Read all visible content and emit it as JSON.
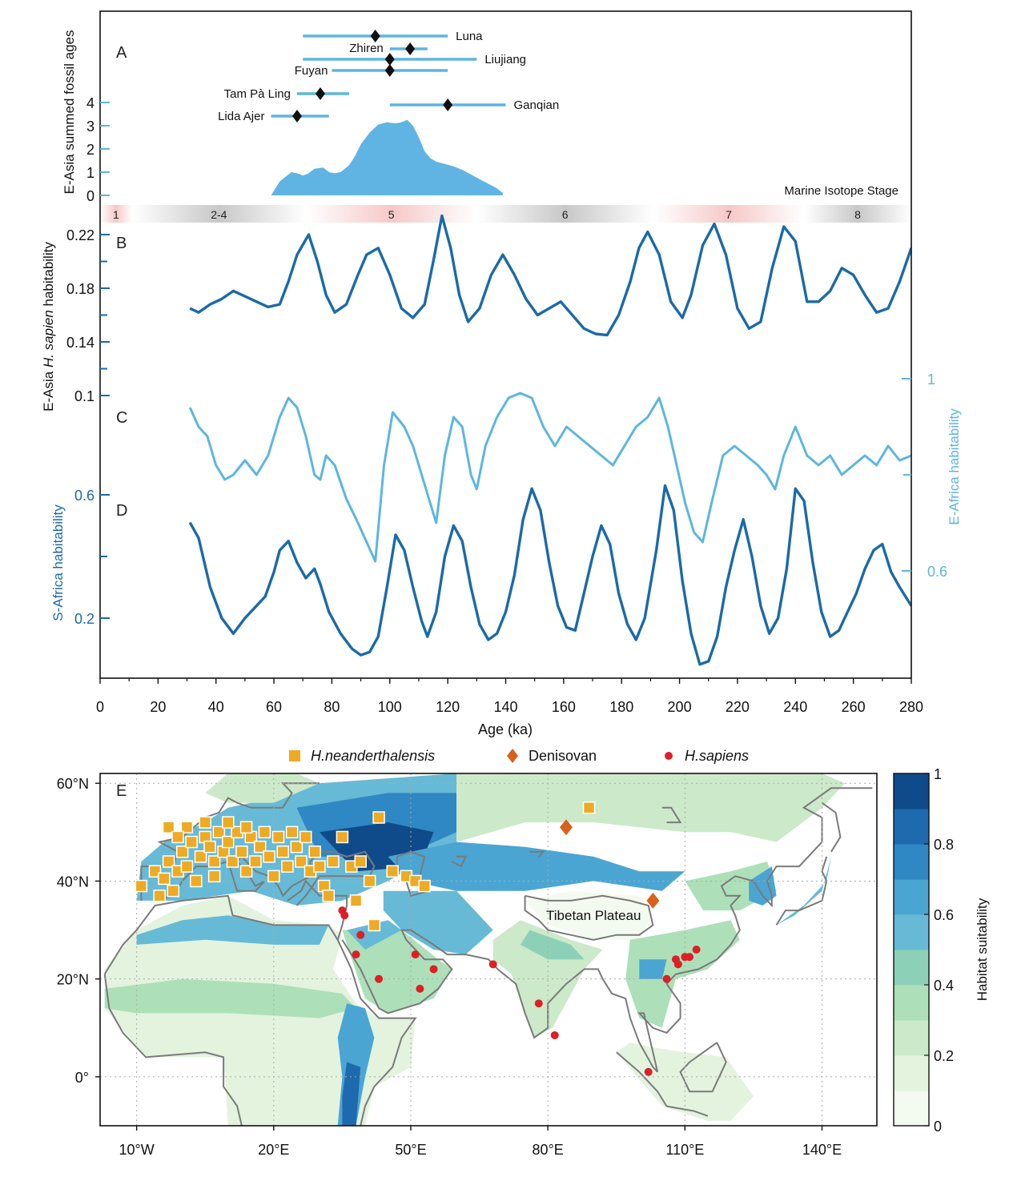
{
  "colors": {
    "dark_blue": "#1a6aa8",
    "light_blue": "#5cb6e0",
    "fill_blue": "#5fb4e4",
    "neanderthal": "#eeaa22",
    "denisovan": "#d9601a",
    "sapiens": "#dd1f26",
    "coast": "#7a7a7a",
    "mis_warm": "#f6c8c8",
    "mis_cold": "#c8c8c8"
  },
  "chart_data": [
    {
      "panel": "A",
      "type": "area",
      "ylabel": "E-Asia summed fossil ages",
      "yticks": [
        0,
        1,
        2,
        3,
        4
      ],
      "summed_curve": {
        "x": [
          59,
          62,
          66,
          68,
          70,
          72,
          74,
          77,
          79,
          81,
          83,
          86,
          88,
          90,
          93,
          96,
          99,
          102,
          104,
          106,
          108,
          110,
          112,
          114,
          116,
          119,
          122,
          125,
          128,
          131,
          134,
          137,
          139
        ],
        "y": [
          0,
          0.6,
          1.0,
          0.95,
          0.85,
          0.95,
          1.15,
          1.2,
          1.0,
          0.95,
          1.0,
          1.3,
          1.7,
          2.2,
          2.7,
          3.05,
          3.15,
          3.1,
          3.15,
          3.25,
          3.0,
          2.5,
          1.9,
          1.6,
          1.45,
          1.35,
          1.25,
          1.1,
          0.9,
          0.7,
          0.5,
          0.3,
          0.1
        ]
      },
      "fossil_sites": [
        {
          "name": "Luna",
          "age": 95,
          "min": 70,
          "max": 120
        },
        {
          "name": "Zhiren",
          "age": 107,
          "min": 100,
          "max": 113
        },
        {
          "name": "Liujiang",
          "age": 100,
          "min": 70,
          "max": 130
        },
        {
          "name": "Fuyan",
          "age": 100,
          "min": 80,
          "max": 120
        },
        {
          "name": "Tam Pà Ling",
          "age": 76,
          "min": 68,
          "max": 86
        },
        {
          "name": "Ganqian",
          "age": 120,
          "min": 100,
          "max": 140
        },
        {
          "name": "Lida Ajer",
          "age": 68,
          "min": 59,
          "max": 79
        }
      ]
    },
    {
      "panel": "MIS",
      "type": "band",
      "title": "Marine Isotope Stage",
      "stages": [
        {
          "label": "1",
          "from": 0,
          "to": 11,
          "kind": "warm"
        },
        {
          "label": "2-4",
          "from": 11,
          "to": 71,
          "kind": "cold"
        },
        {
          "label": "5",
          "from": 71,
          "to": 130,
          "kind": "warm"
        },
        {
          "label": "6",
          "from": 130,
          "to": 191,
          "kind": "cold"
        },
        {
          "label": "7",
          "from": 191,
          "to": 243,
          "kind": "warm"
        },
        {
          "label": "8",
          "from": 243,
          "to": 280,
          "kind": "cold"
        }
      ]
    },
    {
      "panel": "B",
      "type": "line",
      "ylabel": "E-Asia H. sapien habitability",
      "yticks": [
        0.1,
        0.14,
        0.18,
        0.22
      ],
      "series": [
        {
          "name": "E-Asia",
          "x": [
            31,
            34,
            38,
            42,
            46,
            50,
            54,
            58,
            62,
            65,
            68,
            72,
            75,
            78,
            81,
            85,
            89,
            92,
            96,
            100,
            104,
            108,
            112,
            115,
            118,
            121,
            124,
            127,
            131,
            135,
            139,
            143,
            147,
            151,
            155,
            159,
            163,
            167,
            171,
            175,
            179,
            183,
            186,
            189,
            193,
            197,
            201,
            204,
            208,
            212,
            216,
            220,
            224,
            228,
            232,
            236,
            240,
            244,
            248,
            252,
            256,
            260,
            264,
            268,
            272,
            276,
            280
          ],
          "y": [
            0.165,
            0.162,
            0.168,
            0.172,
            0.178,
            0.174,
            0.17,
            0.166,
            0.168,
            0.185,
            0.205,
            0.22,
            0.2,
            0.175,
            0.162,
            0.168,
            0.19,
            0.205,
            0.21,
            0.19,
            0.165,
            0.158,
            0.168,
            0.2,
            0.234,
            0.21,
            0.175,
            0.155,
            0.165,
            0.19,
            0.205,
            0.19,
            0.172,
            0.16,
            0.165,
            0.17,
            0.16,
            0.15,
            0.146,
            0.145,
            0.16,
            0.185,
            0.21,
            0.222,
            0.205,
            0.17,
            0.158,
            0.175,
            0.212,
            0.228,
            0.205,
            0.165,
            0.15,
            0.155,
            0.195,
            0.226,
            0.215,
            0.17,
            0.17,
            0.178,
            0.195,
            0.19,
            0.175,
            0.162,
            0.165,
            0.185,
            0.21
          ]
        }
      ]
    },
    {
      "panel": "C",
      "type": "line",
      "ylabel": "E-Africa habitability",
      "yticks": [
        0.6,
        1
      ],
      "series": [
        {
          "name": "E-Africa",
          "x": [
            31,
            34,
            37,
            40,
            43,
            46,
            50,
            54,
            58,
            62,
            65,
            68,
            71,
            74,
            76,
            78,
            81,
            85,
            89,
            92,
            95,
            98,
            101,
            105,
            108,
            111,
            114,
            116,
            119,
            122,
            125,
            128,
            130,
            133,
            137,
            141,
            145,
            149,
            153,
            157,
            161,
            165,
            169,
            173,
            177,
            181,
            185,
            189,
            193,
            196,
            199,
            202,
            205,
            208,
            211,
            215,
            219,
            223,
            227,
            230,
            233,
            236,
            240,
            244,
            248,
            252,
            256,
            260,
            264,
            268,
            272,
            276,
            280
          ],
          "y": [
            0.94,
            0.9,
            0.88,
            0.82,
            0.79,
            0.8,
            0.83,
            0.8,
            0.84,
            0.92,
            0.96,
            0.94,
            0.88,
            0.8,
            0.79,
            0.84,
            0.82,
            0.75,
            0.7,
            0.66,
            0.62,
            0.82,
            0.93,
            0.9,
            0.86,
            0.8,
            0.74,
            0.7,
            0.84,
            0.92,
            0.9,
            0.8,
            0.77,
            0.86,
            0.92,
            0.96,
            0.97,
            0.96,
            0.9,
            0.86,
            0.9,
            0.88,
            0.86,
            0.84,
            0.82,
            0.86,
            0.9,
            0.92,
            0.96,
            0.9,
            0.82,
            0.74,
            0.68,
            0.66,
            0.74,
            0.84,
            0.86,
            0.84,
            0.82,
            0.8,
            0.77,
            0.84,
            0.9,
            0.84,
            0.82,
            0.84,
            0.8,
            0.82,
            0.84,
            0.82,
            0.86,
            0.83,
            0.84
          ]
        }
      ]
    },
    {
      "panel": "D",
      "type": "line",
      "ylabel": "S-Africa habitability",
      "yticks": [
        0.2,
        0.6
      ],
      "series": [
        {
          "name": "S-Africa",
          "x": [
            31,
            34,
            38,
            42,
            46,
            50,
            54,
            57,
            60,
            62,
            65,
            68,
            71,
            74,
            76,
            79,
            83,
            87,
            90,
            93,
            96,
            99,
            102,
            105,
            108,
            111,
            113,
            116,
            119,
            122,
            125,
            128,
            131,
            134,
            137,
            140,
            143,
            146,
            149,
            152,
            155,
            158,
            161,
            164,
            167,
            170,
            173,
            176,
            179,
            182,
            185,
            188,
            192,
            195,
            198,
            201,
            204,
            207,
            210,
            213,
            216,
            219,
            222,
            225,
            228,
            231,
            234,
            237,
            240,
            243,
            246,
            249,
            252,
            255,
            258,
            261,
            264,
            267,
            270,
            273,
            276,
            280
          ],
          "y": [
            0.51,
            0.46,
            0.3,
            0.2,
            0.15,
            0.2,
            0.24,
            0.27,
            0.35,
            0.42,
            0.45,
            0.38,
            0.33,
            0.36,
            0.31,
            0.22,
            0.15,
            0.1,
            0.08,
            0.09,
            0.14,
            0.3,
            0.47,
            0.42,
            0.3,
            0.19,
            0.14,
            0.22,
            0.4,
            0.5,
            0.45,
            0.3,
            0.18,
            0.13,
            0.15,
            0.22,
            0.34,
            0.52,
            0.62,
            0.55,
            0.38,
            0.24,
            0.17,
            0.16,
            0.28,
            0.4,
            0.5,
            0.44,
            0.28,
            0.18,
            0.13,
            0.2,
            0.42,
            0.63,
            0.55,
            0.32,
            0.15,
            0.05,
            0.06,
            0.14,
            0.3,
            0.42,
            0.52,
            0.4,
            0.24,
            0.15,
            0.2,
            0.36,
            0.62,
            0.58,
            0.38,
            0.22,
            0.14,
            0.16,
            0.22,
            0.28,
            0.36,
            0.42,
            0.44,
            0.35,
            0.3,
            0.24
          ]
        }
      ]
    },
    {
      "panel": "axis",
      "type": "axis",
      "xlabel": "Age (ka)",
      "xlim": [
        0,
        280
      ],
      "xticks": [
        0,
        20,
        40,
        60,
        80,
        100,
        120,
        140,
        160,
        180,
        200,
        220,
        240,
        260,
        280
      ]
    },
    {
      "panel": "E",
      "type": "heatmap",
      "title": "E",
      "colorbar_label": "Habitat suitability",
      "colorbar_ticks": [
        0,
        0.2,
        0.4,
        0.6,
        0.8,
        1
      ],
      "colorbar_colors": [
        "#f3faf0",
        "#e3f3de",
        "#cce9c9",
        "#ade0b8",
        "#8cd1b7",
        "#66bad6",
        "#4aa5d2",
        "#2f87c3",
        "#1d6aae",
        "#0f4a8a"
      ],
      "lon_ticks": [
        "10°W",
        "20°E",
        "50°E",
        "80°E",
        "110°E",
        "140°E"
      ],
      "lat_ticks": [
        "60°N",
        "40°N",
        "20°N",
        "0°"
      ],
      "lon_values": [
        -10,
        20,
        50,
        80,
        110,
        140
      ],
      "lat_values": [
        60,
        40,
        20,
        0
      ],
      "extent": {
        "lon": [
          -18,
          152
        ],
        "lat": [
          -10,
          62
        ]
      },
      "legend": [
        {
          "label": "H.neanderthalensis",
          "italic": true,
          "marker": "square"
        },
        {
          "label": "Denisovan",
          "italic": false,
          "marker": "diamond"
        },
        {
          "label": "H.sapiens",
          "italic": true,
          "marker": "circle"
        }
      ],
      "annotation": "Tibetan Plateau",
      "neanderthal_sites": [
        [
          -9,
          39
        ],
        [
          -6,
          42
        ],
        [
          -5,
          37
        ],
        [
          -4,
          40.5
        ],
        [
          -3,
          44
        ],
        [
          -2,
          38
        ],
        [
          -1,
          42
        ],
        [
          0,
          46
        ],
        [
          1,
          43
        ],
        [
          2,
          48
        ],
        [
          3,
          40
        ],
        [
          4,
          45
        ],
        [
          5,
          49
        ],
        [
          6,
          47
        ],
        [
          7,
          44
        ],
        [
          8,
          50
        ],
        [
          9,
          46
        ],
        [
          10,
          48
        ],
        [
          11,
          44
        ],
        [
          12,
          50
        ],
        [
          13,
          46
        ],
        [
          14,
          42
        ],
        [
          15,
          49
        ],
        [
          16,
          44
        ],
        [
          17,
          47
        ],
        [
          18,
          50
        ],
        [
          19,
          45
        ],
        [
          20,
          41
        ],
        [
          21,
          49
        ],
        [
          22,
          46
        ],
        [
          23,
          43
        ],
        [
          24,
          50
        ],
        [
          25,
          47
        ],
        [
          26,
          44
        ],
        [
          27,
          49
        ],
        [
          28,
          42
        ],
        [
          29,
          46
        ],
        [
          30,
          43
        ],
        [
          31,
          39
        ],
        [
          32,
          37
        ],
        [
          33,
          44
        ],
        [
          35,
          49
        ],
        [
          37,
          43
        ],
        [
          38,
          36
        ],
        [
          39,
          44
        ],
        [
          41,
          40
        ],
        [
          42,
          31
        ],
        [
          43,
          53
        ],
        [
          46,
          42
        ],
        [
          49,
          41
        ],
        [
          51,
          40
        ],
        [
          53,
          39
        ],
        [
          89,
          55
        ],
        [
          -3,
          51
        ],
        [
          1,
          51
        ],
        [
          5,
          52
        ],
        [
          10,
          52
        ],
        [
          14,
          51
        ],
        [
          -1,
          49
        ],
        [
          7,
          41
        ]
      ],
      "denisovan_sites": [
        [
          84,
          51
        ],
        [
          103,
          36
        ]
      ],
      "sapiens_sites": [
        [
          35,
          34
        ],
        [
          35.5,
          33
        ],
        [
          38,
          25
        ],
        [
          39,
          29
        ],
        [
          43,
          20
        ],
        [
          51,
          25
        ],
        [
          52,
          18
        ],
        [
          55,
          22
        ],
        [
          68,
          23
        ],
        [
          78,
          15
        ],
        [
          81.5,
          8.5
        ],
        [
          102,
          1
        ],
        [
          106,
          20
        ],
        [
          108,
          24
        ],
        [
          108.5,
          23
        ],
        [
          110,
          24.5
        ],
        [
          111,
          24.5
        ],
        [
          112.5,
          26
        ]
      ]
    }
  ],
  "labels": {
    "panel_a": "A",
    "panel_b": "B",
    "panel_c": "C",
    "panel_d": "D",
    "mis_title": "Marine Isotope Stage",
    "ylabel_a": "E-Asia summed fossil ages",
    "ylabel_b_pre": "E-Asia ",
    "ylabel_b_it": "H. sapien",
    "ylabel_b_post": " habitability",
    "ylabel_c": "E-Africa habitability",
    "ylabel_d": "S-Africa habitability",
    "xlabel": "Age (ka)"
  }
}
